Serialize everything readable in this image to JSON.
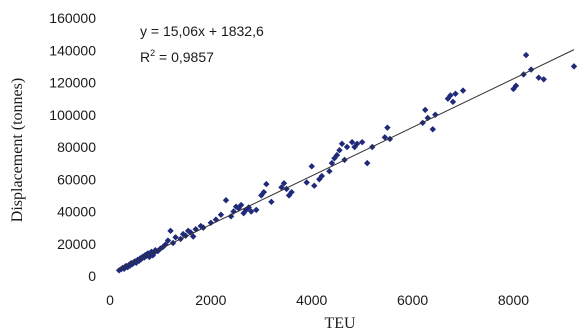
{
  "chart_data": {
    "type": "scatter",
    "xlabel": "TEU",
    "ylabel": "Displacement (tonnes)",
    "xlim": [
      0,
      9200
    ],
    "ylim": [
      0,
      160000
    ],
    "x_ticks": [
      "0",
      "2000",
      "4000",
      "6000",
      "8000"
    ],
    "x_tick_values": [
      0,
      2000,
      4000,
      6000,
      8000
    ],
    "y_ticks": [
      "0",
      "20000",
      "40000",
      "60000",
      "80000",
      "100000",
      "120000",
      "140000",
      "160000"
    ],
    "y_tick_values": [
      0,
      20000,
      40000,
      60000,
      80000,
      100000,
      120000,
      140000,
      160000
    ],
    "grid": false,
    "marker_color": "#1f2a7a",
    "line_color": "#333333",
    "trendline": {
      "slope": 15.06,
      "intercept": 1832.6,
      "x_range": [
        150,
        9200
      ],
      "equation_label": "y = 15,06x + 1832,6",
      "r2_prefix": "R",
      "r2_sup": "2",
      "r2_value": " = 0,9857"
    },
    "points": [
      [
        180,
        3500
      ],
      [
        220,
        4200
      ],
      [
        250,
        5000
      ],
      [
        280,
        4500
      ],
      [
        300,
        5800
      ],
      [
        320,
        6200
      ],
      [
        350,
        5500
      ],
      [
        380,
        7000
      ],
      [
        400,
        6500
      ],
      [
        420,
        8000
      ],
      [
        450,
        7500
      ],
      [
        480,
        8800
      ],
      [
        500,
        9000
      ],
      [
        520,
        8200
      ],
      [
        550,
        10000
      ],
      [
        580,
        9500
      ],
      [
        600,
        11000
      ],
      [
        620,
        10500
      ],
      [
        650,
        12000
      ],
      [
        680,
        11500
      ],
      [
        700,
        13000
      ],
      [
        720,
        12500
      ],
      [
        750,
        14000
      ],
      [
        780,
        11800
      ],
      [
        800,
        13500
      ],
      [
        820,
        15000
      ],
      [
        850,
        12800
      ],
      [
        880,
        14500
      ],
      [
        900,
        16000
      ],
      [
        950,
        15500
      ],
      [
        1000,
        17000
      ],
      [
        1050,
        18000
      ],
      [
        1100,
        19500
      ],
      [
        1150,
        22000
      ],
      [
        1200,
        28000
      ],
      [
        1250,
        20500
      ],
      [
        1300,
        24000
      ],
      [
        1400,
        23000
      ],
      [
        1450,
        26000
      ],
      [
        1500,
        25000
      ],
      [
        1550,
        28000
      ],
      [
        1600,
        27000
      ],
      [
        1650,
        24500
      ],
      [
        1700,
        29000
      ],
      [
        1800,
        31000
      ],
      [
        1850,
        30000
      ],
      [
        2000,
        33000
      ],
      [
        2100,
        35000
      ],
      [
        2200,
        38000
      ],
      [
        2300,
        47000
      ],
      [
        2400,
        37000
      ],
      [
        2450,
        40000
      ],
      [
        2500,
        43000
      ],
      [
        2550,
        42000
      ],
      [
        2600,
        44000
      ],
      [
        2650,
        39000
      ],
      [
        2700,
        41000
      ],
      [
        2750,
        42500
      ],
      [
        2800,
        40000
      ],
      [
        2900,
        41000
      ],
      [
        3000,
        50000
      ],
      [
        3050,
        52000
      ],
      [
        3100,
        57000
      ],
      [
        3200,
        46000
      ],
      [
        3400,
        55000
      ],
      [
        3450,
        57500
      ],
      [
        3500,
        54000
      ],
      [
        3550,
        50000
      ],
      [
        3600,
        52000
      ],
      [
        3900,
        58000
      ],
      [
        4000,
        68000
      ],
      [
        4050,
        56000
      ],
      [
        4150,
        60000
      ],
      [
        4200,
        62000
      ],
      [
        4350,
        65000
      ],
      [
        4400,
        70000
      ],
      [
        4450,
        73000
      ],
      [
        4500,
        75000
      ],
      [
        4550,
        78000
      ],
      [
        4600,
        82000
      ],
      [
        4650,
        72000
      ],
      [
        4700,
        80000
      ],
      [
        4800,
        83000
      ],
      [
        4850,
        80000
      ],
      [
        4900,
        82000
      ],
      [
        5000,
        83000
      ],
      [
        5100,
        70000
      ],
      [
        5200,
        80000
      ],
      [
        5450,
        86000
      ],
      [
        5500,
        92000
      ],
      [
        5550,
        85000
      ],
      [
        6200,
        95000
      ],
      [
        6250,
        103000
      ],
      [
        6300,
        98000
      ],
      [
        6400,
        91000
      ],
      [
        6450,
        100000
      ],
      [
        6700,
        110000
      ],
      [
        6750,
        112000
      ],
      [
        6800,
        108000
      ],
      [
        6850,
        113000
      ],
      [
        7000,
        115000
      ],
      [
        8000,
        116000
      ],
      [
        8050,
        118000
      ],
      [
        8200,
        125000
      ],
      [
        8250,
        137000
      ],
      [
        8350,
        128000
      ],
      [
        8500,
        123000
      ],
      [
        8600,
        122000
      ],
      [
        9200,
        130000
      ]
    ]
  }
}
